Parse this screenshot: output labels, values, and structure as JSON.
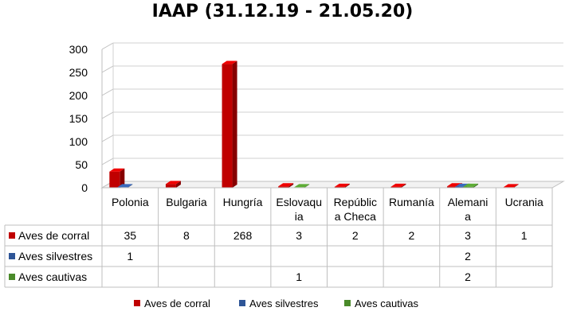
{
  "chart_data": {
    "type": "bar",
    "title": "IAAP (31.12.19 - 21.05.20)",
    "categories": [
      [
        "Polonia"
      ],
      [
        "Bulgaria"
      ],
      [
        "Hungría"
      ],
      [
        "Eslovaqu",
        "ia"
      ],
      [
        "Repúblic",
        "a Checa"
      ],
      [
        "Rumanía"
      ],
      [
        "Alemani",
        "a"
      ],
      [
        "Ucrania"
      ]
    ],
    "series": [
      {
        "name": "Aves de corral",
        "color": "#c00000",
        "values": [
          35,
          8,
          268,
          3,
          2,
          2,
          3,
          1
        ],
        "labels": [
          "35",
          "8",
          "268",
          "3",
          "2",
          "2",
          "3",
          "1"
        ]
      },
      {
        "name": "Aves silvestres",
        "color": "#2e5597",
        "values": [
          1,
          null,
          null,
          null,
          null,
          null,
          2,
          null
        ],
        "labels": [
          "1",
          "",
          "",
          "",
          "",
          "",
          "2",
          ""
        ]
      },
      {
        "name": "Aves cautivas",
        "color": "#4a8a2a",
        "values": [
          null,
          null,
          null,
          1,
          null,
          null,
          2,
          null
        ],
        "labels": [
          "",
          "",
          "",
          "1",
          "",
          "",
          "2",
          ""
        ]
      }
    ],
    "yticks": [
      0,
      50,
      100,
      150,
      200,
      250,
      300
    ],
    "ylim": [
      0,
      300
    ],
    "grid": true,
    "legend": "bottom",
    "style": "3d-bar-with-data-table"
  }
}
